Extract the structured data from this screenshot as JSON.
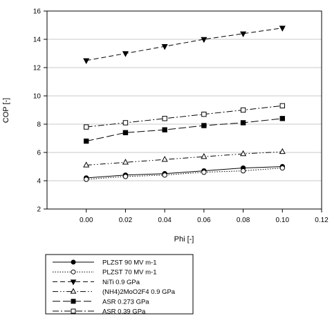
{
  "chart_data": {
    "type": "line",
    "xlabel": "Phi [-]",
    "ylabel": "COP [-]",
    "xlim": [
      -0.02,
      0.12
    ],
    "ylim": [
      2,
      16
    ],
    "xticks": [
      "0.00",
      "0.02",
      "0.04",
      "0.06",
      "0.08",
      "0.10",
      "0.12"
    ],
    "yticks": [
      "2",
      "4",
      "6",
      "8",
      "10",
      "12",
      "14",
      "16"
    ],
    "x": [
      0.0,
      0.02,
      0.04,
      0.06,
      0.08,
      0.1
    ],
    "grid": "horizontal",
    "legend_position": "bottom",
    "series": [
      {
        "name": "PLZST 90 MV m-1",
        "marker": "circle-filled",
        "line": "solid",
        "values": [
          4.2,
          4.4,
          4.5,
          4.7,
          4.9,
          5.0
        ]
      },
      {
        "name": "PLZST 70 MV m-1",
        "marker": "circle-open",
        "line": "dotted",
        "values": [
          4.1,
          4.3,
          4.4,
          4.6,
          4.7,
          4.9
        ]
      },
      {
        "name": "NiTi 0.9 GPa",
        "marker": "triangle-down-filled",
        "line": "dashed",
        "values": [
          12.5,
          13.0,
          13.5,
          14.0,
          14.4,
          14.8
        ]
      },
      {
        "name": "(NH4)2MoO2F4 0.9 GPa",
        "marker": "triangle-up-open",
        "line": "dash-dot-dot",
        "values": [
          5.1,
          5.3,
          5.5,
          5.7,
          5.9,
          6.05
        ]
      },
      {
        "name": "ASR 0.273 GPa",
        "marker": "square-filled",
        "line": "long-dash",
        "values": [
          6.8,
          7.4,
          7.6,
          7.9,
          8.1,
          8.4
        ]
      },
      {
        "name": "ASR 0.39 GPa",
        "marker": "square-open",
        "line": "dash-dot",
        "values": [
          7.8,
          8.1,
          8.4,
          8.7,
          9.0,
          9.3
        ]
      }
    ]
  }
}
